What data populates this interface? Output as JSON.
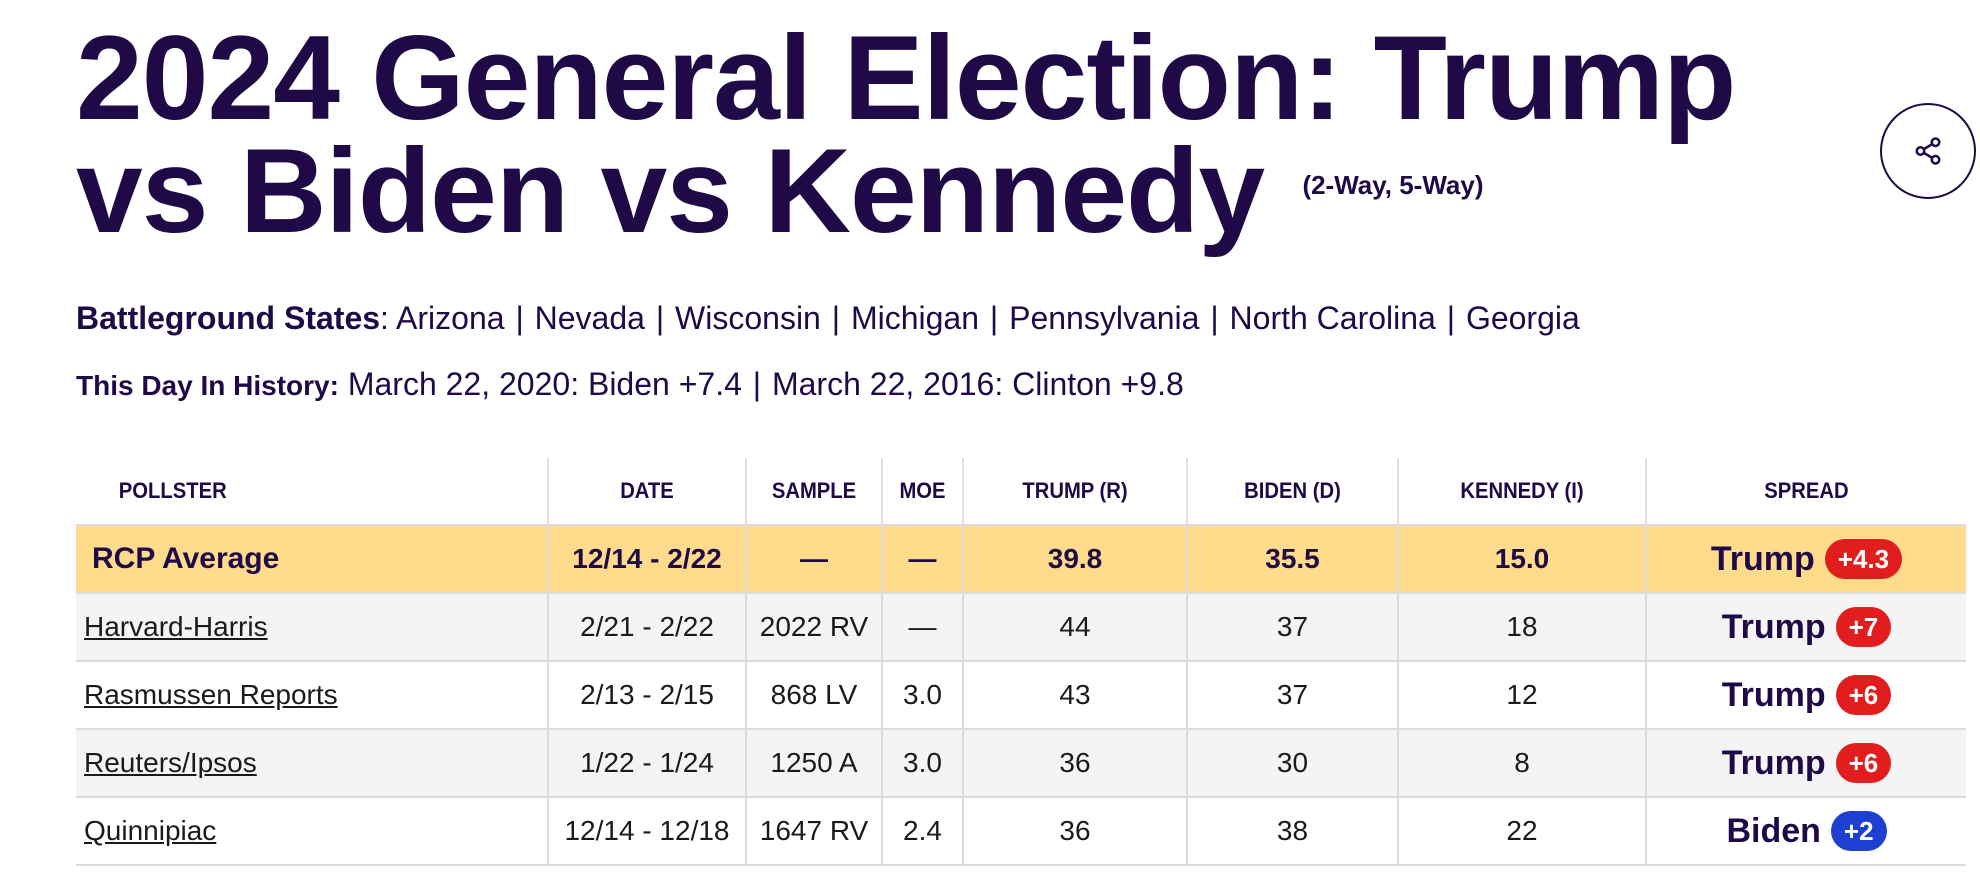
{
  "header": {
    "title": "2024 General Election: Trump vs Biden vs Kennedy",
    "title_suffix": "(2-Way, 5-Way)"
  },
  "share_button": {
    "icon": "share-icon"
  },
  "battleground": {
    "label": "Battleground States",
    "states": [
      "Arizona",
      "Nevada",
      "Wisconsin",
      "Michigan",
      "Pennsylvania",
      "North Carolina",
      "Georgia"
    ]
  },
  "history": {
    "label": "This Day In History:",
    "entries": [
      "March 22, 2020: Biden +7.4",
      "March 22, 2016: Clinton +9.8"
    ]
  },
  "table": {
    "columns": [
      "POLLSTER",
      "DATE",
      "SAMPLE",
      "MOE",
      "TRUMP (R)",
      "BIDEN (D)",
      "KENNEDY (I)",
      "SPREAD"
    ],
    "average": {
      "pollster": "RCP Average",
      "date": "12/14 - 2/22",
      "sample": "—",
      "moe": "—",
      "trump": "39.8",
      "biden": "35.5",
      "kennedy": "15.0",
      "spread_winner": "Trump",
      "spread_value": "+4.3",
      "spread_party": "r"
    },
    "rows": [
      {
        "pollster": "Harvard-Harris",
        "date": "2/21 - 2/22",
        "sample": "2022 RV",
        "moe": "—",
        "trump": "44",
        "biden": "37",
        "kennedy": "18",
        "spread_winner": "Trump",
        "spread_value": "+7",
        "spread_party": "r"
      },
      {
        "pollster": "Rasmussen Reports",
        "date": "2/13 - 2/15",
        "sample": "868 LV",
        "moe": "3.0",
        "trump": "43",
        "biden": "37",
        "kennedy": "12",
        "spread_winner": "Trump",
        "spread_value": "+6",
        "spread_party": "r"
      },
      {
        "pollster": "Reuters/Ipsos",
        "date": "1/22 - 1/24",
        "sample": "1250 A",
        "moe": "3.0",
        "trump": "36",
        "biden": "30",
        "kennedy": "8",
        "spread_winner": "Trump",
        "spread_value": "+6",
        "spread_party": "r"
      },
      {
        "pollster": "Quinnipiac",
        "date": "12/14 - 12/18",
        "sample": "1647 RV",
        "moe": "2.4",
        "trump": "36",
        "biden": "38",
        "kennedy": "22",
        "spread_winner": "Biden",
        "spread_value": "+2",
        "spread_party": "d"
      }
    ]
  },
  "colors": {
    "title": "#1f0a47",
    "average_row": "#fedc8c",
    "republican": "#e21d1d",
    "democrat": "#1f3fd1",
    "alt_row": "#f4f4f4"
  }
}
